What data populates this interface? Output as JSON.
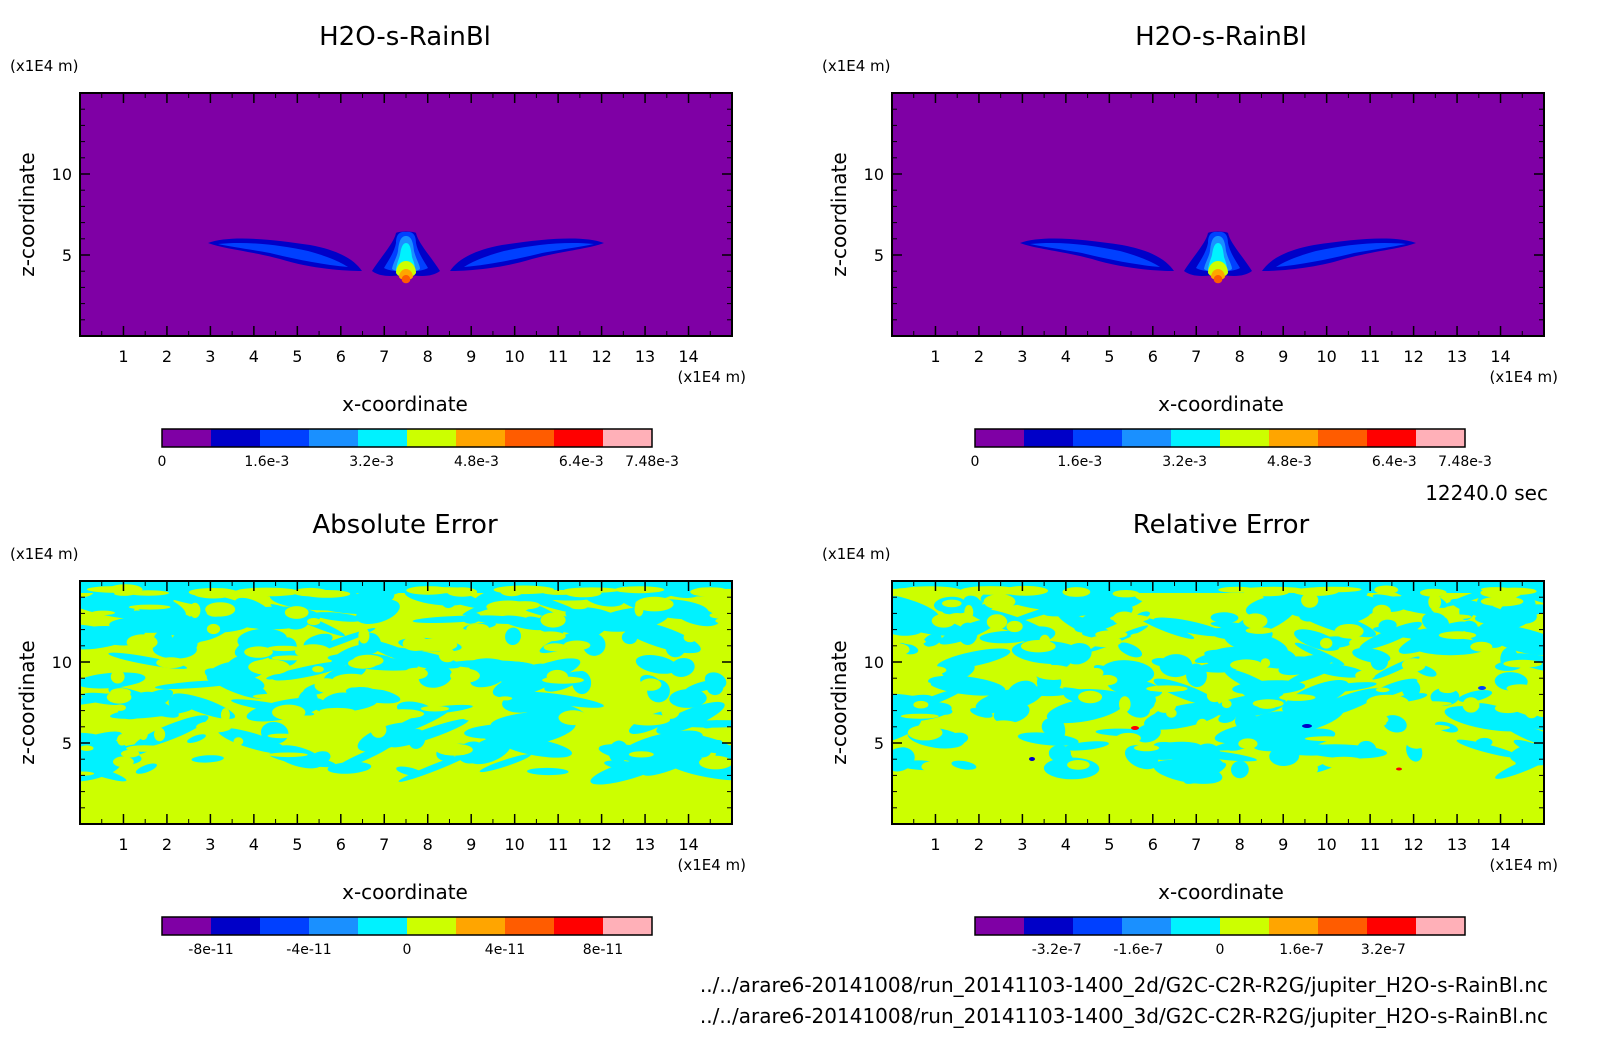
{
  "time_label": "12240.0 sec",
  "footer": {
    "file_2d": "../../arare6-20141008/run_20141103-1400_2d/G2C-C2R-R2G/jupiter_H2O-s-RainBl.nc",
    "file_3d": "../../arare6-20141008/run_20141103-1400_3d/G2C-C2R-R2G/jupiter_H2O-s-RainBl.nc"
  },
  "colors": {
    "levels": [
      "#7f00a5",
      "#0000c8",
      "#0040ff",
      "#1a90ff",
      "#00f2ff",
      "#ccff00",
      "#ffa500",
      "#ff5c00",
      "#ff0000",
      "#ffb0b8"
    ],
    "frame": "#000000"
  },
  "chart_data": [
    {
      "type": "heatmap",
      "title": "H2O-s-RainBl",
      "xlabel": "x-coordinate",
      "ylabel": "z-coordinate",
      "x_unit": "(x1E4 m)",
      "y_unit": "(x1E4 m)",
      "xlim": [
        0,
        15
      ],
      "ylim": [
        0,
        15
      ],
      "x_ticks": [
        "1",
        "2",
        "3",
        "4",
        "5",
        "6",
        "7",
        "8",
        "9",
        "10",
        "11",
        "12",
        "13",
        "14"
      ],
      "y_ticks": [
        "5",
        "10"
      ],
      "field": "plume",
      "colorbar": {
        "range": [
          0,
          0.00748
        ],
        "tick_labels": [
          "0",
          "1.6e-3",
          "3.2e-3",
          "4.8e-3",
          "6.4e-3",
          "7.48e-3"
        ],
        "tick_values": [
          0,
          0.0016,
          0.0032,
          0.0048,
          0.0064,
          0.00748
        ]
      }
    },
    {
      "type": "heatmap",
      "title": "H2O-s-RainBl",
      "xlabel": "x-coordinate",
      "ylabel": "z-coordinate",
      "x_unit": "(x1E4 m)",
      "y_unit": "(x1E4 m)",
      "xlim": [
        0,
        15
      ],
      "ylim": [
        0,
        15
      ],
      "x_ticks": [
        "1",
        "2",
        "3",
        "4",
        "5",
        "6",
        "7",
        "8",
        "9",
        "10",
        "11",
        "12",
        "13",
        "14"
      ],
      "y_ticks": [
        "5",
        "10"
      ],
      "field": "plume",
      "colorbar": {
        "range": [
          0,
          0.00748
        ],
        "tick_labels": [
          "0",
          "1.6e-3",
          "3.2e-3",
          "4.8e-3",
          "6.4e-3",
          "7.48e-3"
        ],
        "tick_values": [
          0,
          0.0016,
          0.0032,
          0.0048,
          0.0064,
          0.00748
        ]
      }
    },
    {
      "type": "heatmap",
      "title": "Absolute Error",
      "xlabel": "x-coordinate",
      "ylabel": "z-coordinate",
      "x_unit": "(x1E4 m)",
      "y_unit": "(x1E4 m)",
      "xlim": [
        0,
        15
      ],
      "ylim": [
        0,
        15
      ],
      "x_ticks": [
        "1",
        "2",
        "3",
        "4",
        "5",
        "6",
        "7",
        "8",
        "9",
        "10",
        "11",
        "12",
        "13",
        "14"
      ],
      "y_ticks": [
        "5",
        "10"
      ],
      "field": "noise",
      "colorbar": {
        "range": [
          -1e-10,
          1e-10
        ],
        "tick_labels": [
          "-8e-11",
          "-4e-11",
          "0",
          "4e-11",
          "8e-11"
        ],
        "tick_values": [
          -8e-11,
          -4e-11,
          0,
          4e-11,
          8e-11
        ]
      }
    },
    {
      "type": "heatmap",
      "title": "Relative Error",
      "xlabel": "x-coordinate",
      "ylabel": "z-coordinate",
      "x_unit": "(x1E4 m)",
      "y_unit": "(x1E4 m)",
      "xlim": [
        0,
        15
      ],
      "ylim": [
        0,
        15
      ],
      "x_ticks": [
        "1",
        "2",
        "3",
        "4",
        "5",
        "6",
        "7",
        "8",
        "9",
        "10",
        "11",
        "12",
        "13",
        "14"
      ],
      "y_ticks": [
        "5",
        "10"
      ],
      "field": "noise",
      "colorbar": {
        "range": [
          -4.8e-07,
          4.8e-07
        ],
        "tick_labels": [
          "-3.2e-7",
          "-1.6e-7",
          "0",
          "1.6e-7",
          "3.2e-7"
        ],
        "tick_values": [
          -3.2e-07,
          -1.6e-07,
          0,
          1.6e-07,
          3.2e-07
        ]
      }
    }
  ]
}
